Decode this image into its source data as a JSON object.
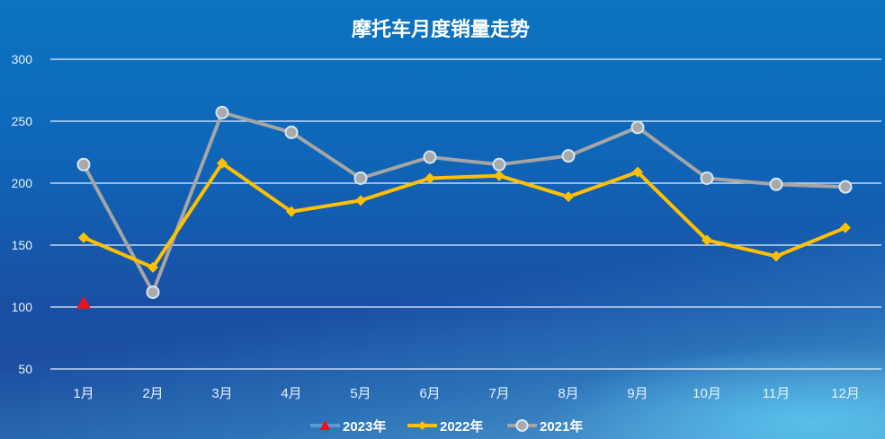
{
  "chart_data": {
    "type": "line",
    "title": "摩托车月度销量走势",
    "xlabel": "",
    "ylabel": "",
    "categories": [
      "1月",
      "2月",
      "3月",
      "4月",
      "5月",
      "6月",
      "7月",
      "8月",
      "9月",
      "10月",
      "11月",
      "12月"
    ],
    "yticks": [
      50,
      100,
      150,
      200,
      250,
      300
    ],
    "ylim": [
      50,
      300
    ],
    "grid": true,
    "legend_position": "bottom",
    "series": [
      {
        "name": "2023年",
        "color": "#e8141c",
        "line_color": "#5b9bd5",
        "marker": "triangle",
        "values": [
          103,
          null,
          null,
          null,
          null,
          null,
          null,
          null,
          null,
          null,
          null,
          null
        ]
      },
      {
        "name": "2022年",
        "color": "#ffc000",
        "marker": "diamond",
        "values": [
          156,
          132,
          216,
          177,
          186,
          204,
          206,
          189,
          209,
          154,
          141,
          164
        ]
      },
      {
        "name": "2021年",
        "color": "#a5a5a5",
        "marker": "circle",
        "values": [
          215,
          112,
          257,
          241,
          204,
          221,
          215,
          222,
          245,
          204,
          199,
          197
        ]
      }
    ]
  }
}
